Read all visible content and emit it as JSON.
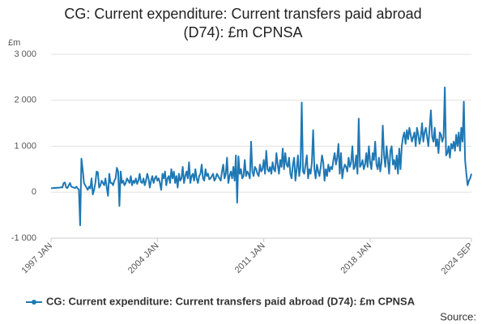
{
  "chart_data": {
    "type": "line",
    "title": "CG: Current expenditure: Current transfers paid abroad (D74): £m CPNSA",
    "y_label": "£m",
    "source": "Source:",
    "categories": [
      "1997 JAN",
      null,
      null,
      null,
      null,
      null,
      null,
      null,
      null,
      null,
      null,
      null,
      null,
      null,
      null,
      null,
      null,
      null,
      null,
      null,
      null,
      null,
      null,
      null,
      null,
      null,
      null,
      null,
      null,
      null,
      null,
      null,
      null,
      null,
      null,
      null,
      null,
      null,
      null,
      null,
      null,
      null,
      null,
      null,
      null,
      null,
      null,
      null,
      null,
      null,
      null,
      null,
      null,
      null,
      null,
      null,
      null,
      null,
      null,
      null,
      null,
      null,
      null,
      null,
      null,
      null,
      null,
      null,
      null,
      null,
      null,
      null,
      null,
      null,
      null,
      null,
      null,
      null,
      null,
      null,
      null,
      null,
      null,
      null,
      "2004 JAN",
      null,
      null,
      null,
      null,
      null,
      null,
      null,
      null,
      null,
      null,
      null,
      null,
      null,
      null,
      null,
      null,
      null,
      null,
      null,
      null,
      null,
      null,
      null,
      null,
      null,
      null,
      null,
      null,
      null,
      null,
      null,
      null,
      null,
      null,
      null,
      null,
      null,
      null,
      null,
      null,
      null,
      null,
      null,
      null,
      null,
      null,
      null,
      null,
      null,
      null,
      null,
      null,
      null,
      null,
      null,
      null,
      null,
      null,
      null,
      null,
      null,
      null,
      null,
      null,
      null,
      null,
      null,
      null,
      null,
      null,
      null,
      null,
      null,
      null,
      null,
      null,
      null,
      null,
      null,
      null,
      null,
      null,
      null,
      "2011 JAN",
      null,
      null,
      null,
      null,
      null,
      null,
      null,
      null,
      null,
      null,
      null,
      null,
      null,
      null,
      null,
      null,
      null,
      null,
      null,
      null,
      null,
      null,
      null,
      null,
      null,
      null,
      null,
      null,
      null,
      null,
      null,
      null,
      null,
      null,
      null,
      null,
      null,
      null,
      null,
      null,
      null,
      null,
      null,
      null,
      null,
      null,
      null,
      null,
      null,
      null,
      null,
      null,
      null,
      null,
      null,
      null,
      null,
      null,
      null,
      null,
      null,
      null,
      null,
      null,
      null,
      null,
      null,
      null,
      null,
      null,
      null,
      null,
      null,
      null,
      null,
      null,
      null,
      null,
      null,
      null,
      null,
      null,
      null,
      "2018 JAN",
      null,
      null,
      null,
      null,
      null,
      null,
      null,
      null,
      null,
      null,
      null,
      null,
      null,
      null,
      null,
      null,
      null,
      null,
      null,
      null,
      null,
      null,
      null,
      null,
      null,
      null,
      null,
      null,
      null,
      null,
      null,
      null,
      null,
      null,
      null,
      null,
      null,
      null,
      null,
      null,
      null,
      null,
      null,
      null,
      null,
      null,
      null,
      null,
      null,
      null,
      null,
      null,
      null,
      null,
      null,
      null,
      null,
      null,
      null,
      null,
      null,
      null,
      null,
      null,
      null,
      null,
      null,
      null,
      null,
      null,
      null,
      null,
      null,
      null,
      null,
      null,
      null,
      null,
      null,
      "2024 SEP"
    ],
    "series": [
      {
        "name": "CG: Current expenditure: Current transfers paid abroad (D74): £m CPNSA",
        "color": "#1f78b4",
        "values": [
          90,
          85,
          90,
          95,
          90,
          100,
          95,
          100,
          110,
          100,
          200,
          210,
          100,
          90,
          150,
          200,
          120,
          110,
          100,
          90,
          120,
          80,
          60,
          -720,
          730,
          500,
          200,
          150,
          100,
          50,
          120,
          80,
          300,
          -50,
          50,
          200,
          450,
          430,
          100,
          150,
          250,
          200,
          150,
          300,
          100,
          -80,
          400,
          200,
          200,
          150,
          250,
          300,
          530,
          450,
          -300,
          450,
          200,
          250,
          150,
          200,
          300,
          250,
          200,
          350,
          150,
          250,
          200,
          300,
          180,
          250,
          400,
          220,
          200,
          300,
          150,
          250,
          400,
          300,
          100,
          250,
          350,
          200,
          300,
          350,
          250,
          300,
          200,
          50,
          400,
          300,
          450,
          150,
          300,
          350,
          200,
          500,
          300,
          450,
          200,
          350,
          100,
          400,
          250,
          300,
          550,
          200,
          350,
          450,
          300,
          650,
          200,
          350,
          400,
          250,
          500,
          300,
          200,
          350,
          400,
          600,
          300,
          250,
          500,
          350,
          400,
          280,
          300,
          350,
          400,
          250,
          300,
          400,
          350,
          300,
          250,
          450,
          600,
          300,
          400,
          750,
          200,
          350,
          450,
          300,
          550,
          250,
          800,
          -230,
          780,
          400,
          500,
          300,
          350,
          700,
          350,
          450,
          400,
          300,
          1100,
          450,
          350,
          550,
          500,
          400,
          350,
          600,
          450,
          500,
          700,
          400,
          900,
          500,
          450,
          550,
          400,
          650,
          500,
          450,
          850,
          600,
          400,
          700,
          550,
          950,
          500,
          850,
          600,
          550,
          750,
          400,
          300,
          600,
          750,
          250,
          500,
          800,
          350,
          550,
          1950,
          450,
          400,
          600,
          800,
          300,
          500,
          400,
          650,
          1350,
          500,
          300,
          600,
          450,
          350,
          550,
          800,
          650,
          250,
          500,
          350,
          600,
          450,
          550,
          500,
          700,
          850,
          600,
          750,
          1050,
          400,
          850,
          300,
          500,
          600,
          550,
          450,
          750,
          550,
          650,
          1000,
          500,
          550,
          800,
          400,
          1600,
          550,
          600,
          700,
          500,
          600,
          850,
          550,
          1000,
          650,
          500,
          850,
          700,
          1100,
          600,
          500,
          750,
          450,
          650,
          1450,
          800,
          550,
          1000,
          700,
          400,
          900,
          1000,
          600,
          700,
          500,
          800,
          400,
          950,
          500,
          1000,
          1200,
          1300,
          1050,
          1350,
          1150,
          1400,
          1250,
          1100,
          1200,
          1300,
          1000,
          1400,
          1250,
          1050,
          1200,
          1500,
          1100,
          1300,
          1400,
          1200,
          1000,
          1400,
          1780,
          1200,
          1100,
          1400,
          1000,
          1150,
          850,
          1300,
          1250,
          1100,
          1200,
          2280,
          800,
          850,
          1000,
          750,
          1050,
          950,
          1100,
          900,
          1250,
          1000,
          1300,
          900,
          1400,
          1100,
          1970,
          700,
          400,
          150,
          250,
          300,
          400
        ]
      }
    ],
    "ylim": [
      -1000,
      3000
    ],
    "yticks": [
      {
        "value": -1000,
        "label": "-1 000"
      },
      0,
      {
        "value": 1000,
        "label": "1 000"
      },
      {
        "value": 2000,
        "label": "2 000"
      },
      {
        "value": 3000,
        "label": "3 000"
      }
    ],
    "grid": true
  }
}
